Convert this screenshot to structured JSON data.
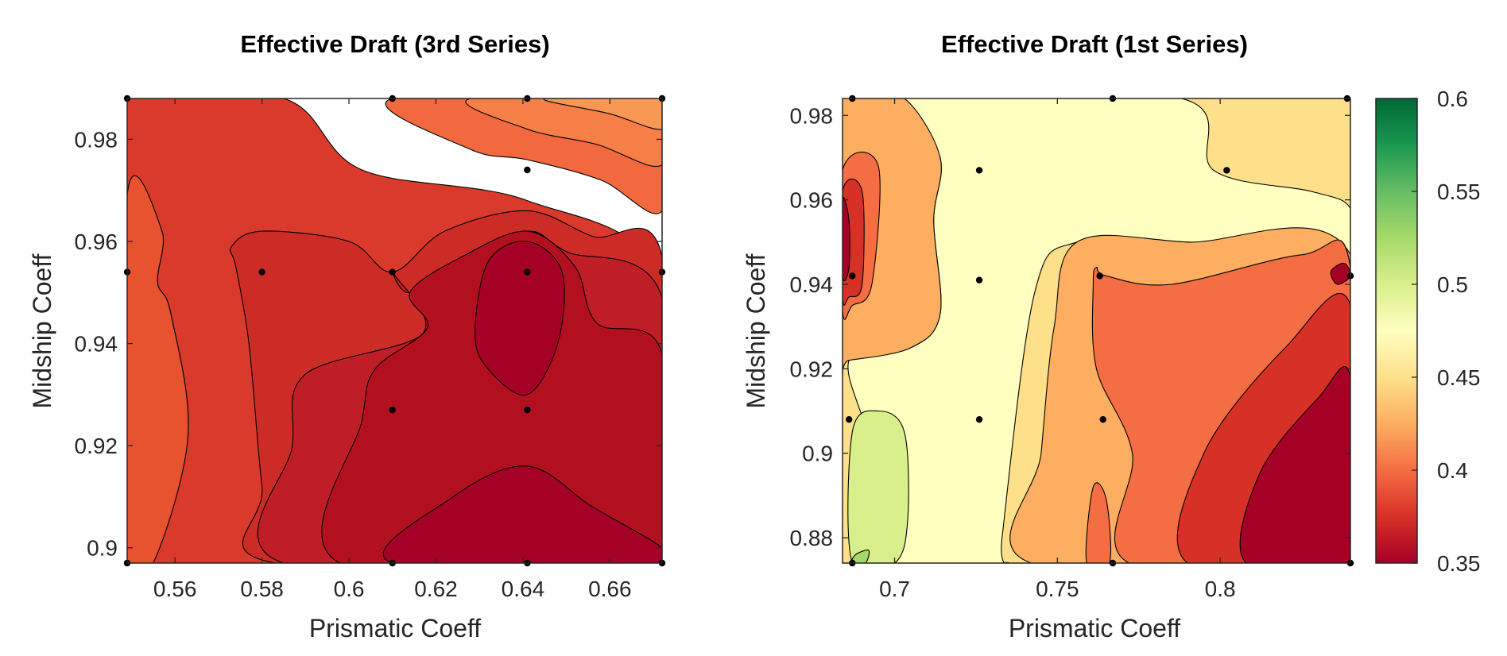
{
  "chart_data": [
    {
      "type": "contour",
      "title": "Effective Draft (3rd Series)",
      "xlabel": "Prismatic Coeff",
      "ylabel": "Midship Coeff",
      "xlim": [
        0.549,
        0.672
      ],
      "ylim": [
        0.897,
        0.988
      ],
      "xticks": [
        0.56,
        0.58,
        0.6,
        0.62,
        0.64,
        0.66
      ],
      "xtick_labels": [
        "0.56",
        "0.58",
        "0.6",
        "0.62",
        "0.64",
        "0.66"
      ],
      "yticks": [
        0.9,
        0.92,
        0.94,
        0.96,
        0.98
      ],
      "ytick_labels": [
        "0.9",
        "0.92",
        "0.94",
        "0.96",
        "0.98"
      ],
      "grid": false,
      "colormap": "RdYlGn",
      "clim": [
        0.35,
        0.6
      ],
      "colors": [
        "#a50026",
        "#b3101f",
        "#c01e27",
        "#cc2b26",
        "#da3a2b",
        "#e8532f",
        "#f2693f",
        "#f57f47",
        "#f99855"
      ],
      "sample_points": [
        {
          "x": 0.549,
          "y": 0.988
        },
        {
          "x": 0.61,
          "y": 0.988
        },
        {
          "x": 0.641,
          "y": 0.988
        },
        {
          "x": 0.672,
          "y": 0.988
        },
        {
          "x": 0.641,
          "y": 0.974
        },
        {
          "x": 0.549,
          "y": 0.954
        },
        {
          "x": 0.58,
          "y": 0.954
        },
        {
          "x": 0.61,
          "y": 0.954
        },
        {
          "x": 0.641,
          "y": 0.954
        },
        {
          "x": 0.672,
          "y": 0.954
        },
        {
          "x": 0.61,
          "y": 0.927
        },
        {
          "x": 0.641,
          "y": 0.927
        },
        {
          "x": 0.549,
          "y": 0.897
        },
        {
          "x": 0.61,
          "y": 0.897
        },
        {
          "x": 0.641,
          "y": 0.897
        },
        {
          "x": 0.672,
          "y": 0.897
        }
      ],
      "contours": [
        {
          "color": "#da3a2b",
          "points": [
            [
              0.549,
              0.988
            ],
            [
              0.585,
              0.988
            ],
            [
              0.603,
              0.974
            ],
            [
              0.641,
              0.968
            ],
            [
              0.672,
              0.952
            ],
            [
              0.672,
              0.897
            ],
            [
              0.555,
              0.897
            ],
            [
              0.563,
              0.922
            ],
            [
              0.559,
              0.946
            ],
            [
              0.556,
              0.952
            ],
            [
              0.557,
              0.962
            ],
            [
              0.549,
              0.969
            ]
          ]
        },
        {
          "color": "#e8532f",
          "points": [
            [
              0.549,
              0.969
            ],
            [
              0.557,
              0.962
            ],
            [
              0.556,
              0.952
            ],
            [
              0.559,
              0.946
            ],
            [
              0.563,
              0.922
            ],
            [
              0.555,
              0.897
            ],
            [
              0.549,
              0.897
            ]
          ]
        },
        {
          "color": "#cc2b26",
          "points": [
            [
              0.573,
              0.959
            ],
            [
              0.58,
              0.962
            ],
            [
              0.6,
              0.96
            ],
            [
              0.61,
              0.954
            ],
            [
              0.622,
              0.962
            ],
            [
              0.641,
              0.966
            ],
            [
              0.656,
              0.961
            ],
            [
              0.672,
              0.957
            ],
            [
              0.672,
              0.897
            ],
            [
              0.583,
              0.897
            ],
            [
              0.58,
              0.912
            ],
            [
              0.577,
              0.94
            ],
            [
              0.574,
              0.955
            ]
          ]
        },
        {
          "color": "#c01e27",
          "points": [
            [
              0.61,
              0.954
            ],
            [
              0.617,
              0.942
            ],
            [
              0.59,
              0.934
            ],
            [
              0.587,
              0.92
            ],
            [
              0.585,
              0.897
            ],
            [
              0.672,
              0.897
            ],
            [
              0.672,
              0.949
            ],
            [
              0.65,
              0.958
            ],
            [
              0.641,
              0.962
            ],
            [
              0.626,
              0.957
            ],
            [
              0.614,
              0.95
            ]
          ]
        },
        {
          "color": "#b3101f",
          "points": [
            [
              0.618,
              0.943
            ],
            [
              0.614,
              0.95
            ],
            [
              0.626,
              0.957
            ],
            [
              0.641,
              0.962
            ],
            [
              0.652,
              0.955
            ],
            [
              0.657,
              0.944
            ],
            [
              0.672,
              0.938
            ],
            [
              0.672,
              0.897
            ],
            [
              0.598,
              0.897
            ],
            [
              0.603,
              0.925
            ],
            [
              0.606,
              0.935
            ]
          ]
        },
        {
          "color": "#a50026",
          "points": [
            [
              0.629,
              0.942
            ],
            [
              0.632,
              0.956
            ],
            [
              0.641,
              0.96
            ],
            [
              0.649,
              0.954
            ],
            [
              0.648,
              0.94
            ],
            [
              0.641,
              0.93
            ],
            [
              0.632,
              0.935
            ]
          ]
        },
        {
          "color": "#a50026",
          "points": [
            [
              0.61,
              0.897
            ],
            [
              0.624,
              0.91
            ],
            [
              0.641,
              0.916
            ],
            [
              0.656,
              0.908
            ],
            [
              0.672,
              0.9
            ],
            [
              0.672,
              0.897
            ]
          ]
        },
        {
          "color": "#f2693f",
          "points": [
            [
              0.61,
              0.988
            ],
            [
              0.628,
              0.978
            ],
            [
              0.641,
              0.976
            ],
            [
              0.658,
              0.972
            ],
            [
              0.672,
              0.966
            ],
            [
              0.672,
              0.988
            ]
          ]
        },
        {
          "color": "#f57f47",
          "points": [
            [
              0.628,
              0.988
            ],
            [
              0.641,
              0.982
            ],
            [
              0.657,
              0.979
            ],
            [
              0.672,
              0.975
            ],
            [
              0.672,
              0.988
            ]
          ]
        },
        {
          "color": "#f99855",
          "points": [
            [
              0.645,
              0.988
            ],
            [
              0.66,
              0.985
            ],
            [
              0.672,
              0.982
            ],
            [
              0.672,
              0.988
            ]
          ]
        }
      ]
    },
    {
      "type": "contour",
      "title": "Effective Draft (1st Series)",
      "xlabel": "Prismatic Coeff",
      "ylabel": "Midship Coeff",
      "xlim": [
        0.684,
        0.84
      ],
      "ylim": [
        0.874,
        0.984
      ],
      "xticks": [
        0.7,
        0.75,
        0.8
      ],
      "xtick_labels": [
        "0.7",
        "0.75",
        "0.8"
      ],
      "yticks": [
        0.88,
        0.9,
        0.92,
        0.94,
        0.96,
        0.98
      ],
      "ytick_labels": [
        "0.88",
        "0.9",
        "0.92",
        "0.94",
        "0.96",
        "0.98"
      ],
      "grid": false,
      "colormap": "RdYlGn",
      "clim": [
        0.35,
        0.6
      ],
      "colorbar": {
        "ticks": [
          0.35,
          0.4,
          0.45,
          0.5,
          0.55,
          0.6
        ],
        "tick_labels": [
          "0.35",
          "0.4",
          "0.45",
          "0.5",
          "0.55",
          "0.6"
        ],
        "colors": [
          "#a50026",
          "#d73027",
          "#f46d43",
          "#fdae61",
          "#fee08b",
          "#ffffbf",
          "#d9ef8b",
          "#a6d96a",
          "#66bd63",
          "#1a9850",
          "#006837"
        ]
      },
      "sample_points": [
        {
          "x": 0.687,
          "y": 0.984
        },
        {
          "x": 0.767,
          "y": 0.984
        },
        {
          "x": 0.839,
          "y": 0.984
        },
        {
          "x": 0.726,
          "y": 0.967
        },
        {
          "x": 0.802,
          "y": 0.967
        },
        {
          "x": 0.687,
          "y": 0.942
        },
        {
          "x": 0.726,
          "y": 0.941
        },
        {
          "x": 0.763,
          "y": 0.942
        },
        {
          "x": 0.84,
          "y": 0.942
        },
        {
          "x": 0.686,
          "y": 0.908
        },
        {
          "x": 0.726,
          "y": 0.908
        },
        {
          "x": 0.764,
          "y": 0.908
        },
        {
          "x": 0.687,
          "y": 0.874
        },
        {
          "x": 0.767,
          "y": 0.874
        },
        {
          "x": 0.84,
          "y": 0.874
        }
      ],
      "contours": [
        {
          "color": "#fee08b",
          "points": [
            [
              0.684,
              0.984
            ],
            [
              0.84,
              0.984
            ],
            [
              0.84,
              0.874
            ],
            [
              0.684,
              0.874
            ]
          ]
        },
        {
          "color": "#ffffbf",
          "points": [
            [
              0.703,
              0.984
            ],
            [
              0.788,
              0.984
            ],
            [
              0.798,
              0.967
            ],
            [
              0.828,
              0.962
            ],
            [
              0.84,
              0.958
            ],
            [
              0.84,
              0.947
            ],
            [
              0.79,
              0.95
            ],
            [
              0.756,
              0.95
            ],
            [
              0.743,
              0.938
            ],
            [
              0.733,
              0.88
            ],
            [
              0.733,
              0.874
            ],
            [
              0.693,
              0.874
            ],
            [
              0.693,
              0.9
            ],
            [
              0.686,
              0.922
            ],
            [
              0.705,
              0.925
            ],
            [
              0.714,
              0.933
            ],
            [
              0.712,
              0.955
            ],
            [
              0.714,
              0.97
            ]
          ]
        },
        {
          "color": "#fdae61",
          "points": [
            [
              0.69,
              0.984
            ],
            [
              0.703,
              0.984
            ],
            [
              0.714,
              0.97
            ],
            [
              0.712,
              0.955
            ],
            [
              0.714,
              0.933
            ],
            [
              0.705,
              0.925
            ],
            [
              0.686,
              0.922
            ],
            [
              0.684,
              0.922
            ],
            [
              0.684,
              0.984
            ]
          ]
        },
        {
          "color": "#fdae61",
          "points": [
            [
              0.756,
              0.95
            ],
            [
              0.79,
              0.95
            ],
            [
              0.84,
              0.947
            ],
            [
              0.84,
              0.874
            ],
            [
              0.742,
              0.874
            ],
            [
              0.745,
              0.9
            ],
            [
              0.749,
              0.93
            ]
          ]
        },
        {
          "color": "#f46d43",
          "points": [
            [
              0.761,
              0.94
            ],
            [
              0.762,
              0.944
            ],
            [
              0.765,
              0.942
            ],
            [
              0.785,
              0.94
            ],
            [
              0.825,
              0.947
            ],
            [
              0.84,
              0.944
            ],
            [
              0.84,
              0.874
            ],
            [
              0.772,
              0.874
            ],
            [
              0.773,
              0.9
            ],
            [
              0.762,
              0.92
            ]
          ]
        },
        {
          "color": "#f46d43",
          "points": [
            [
              0.684,
              0.967
            ],
            [
              0.695,
              0.968
            ],
            [
              0.693,
              0.94
            ],
            [
              0.687,
              0.935
            ],
            [
              0.684,
              0.934
            ]
          ]
        },
        {
          "color": "#f46d43",
          "points": [
            [
              0.759,
              0.874
            ],
            [
              0.761,
              0.892
            ],
            [
              0.765,
              0.889
            ],
            [
              0.766,
              0.874
            ]
          ]
        },
        {
          "color": "#d73027",
          "points": [
            [
              0.684,
              0.962
            ],
            [
              0.69,
              0.962
            ],
            [
              0.69,
              0.94
            ],
            [
              0.686,
              0.937
            ],
            [
              0.684,
              0.937
            ]
          ]
        },
        {
          "color": "#d73027",
          "points": [
            [
              0.79,
              0.874
            ],
            [
              0.795,
              0.9
            ],
            [
              0.82,
              0.925
            ],
            [
              0.84,
              0.935
            ],
            [
              0.84,
              0.874
            ]
          ]
        },
        {
          "color": "#a50026",
          "points": [
            [
              0.808,
              0.874
            ],
            [
              0.812,
              0.895
            ],
            [
              0.83,
              0.913
            ],
            [
              0.84,
              0.918
            ],
            [
              0.84,
              0.874
            ]
          ]
        },
        {
          "color": "#a50026",
          "points": [
            [
              0.684,
              0.96
            ],
            [
              0.686,
              0.955
            ],
            [
              0.686,
              0.944
            ],
            [
              0.684,
              0.942
            ]
          ]
        },
        {
          "color": "#a50026",
          "points": [
            [
              0.834,
              0.943
            ],
            [
              0.838,
              0.945
            ],
            [
              0.84,
              0.942
            ],
            [
              0.836,
              0.94
            ]
          ]
        },
        {
          "color": "#d9ef8b",
          "points": [
            [
              0.687,
              0.874
            ],
            [
              0.7,
              0.874
            ],
            [
              0.704,
              0.884
            ],
            [
              0.703,
              0.905
            ],
            [
              0.695,
              0.91
            ],
            [
              0.687,
              0.905
            ]
          ]
        },
        {
          "color": "#a6d96a",
          "points": [
            [
              0.687,
              0.874
            ],
            [
              0.691,
              0.874
            ],
            [
              0.692,
              0.877
            ],
            [
              0.688,
              0.876
            ]
          ]
        }
      ]
    }
  ]
}
